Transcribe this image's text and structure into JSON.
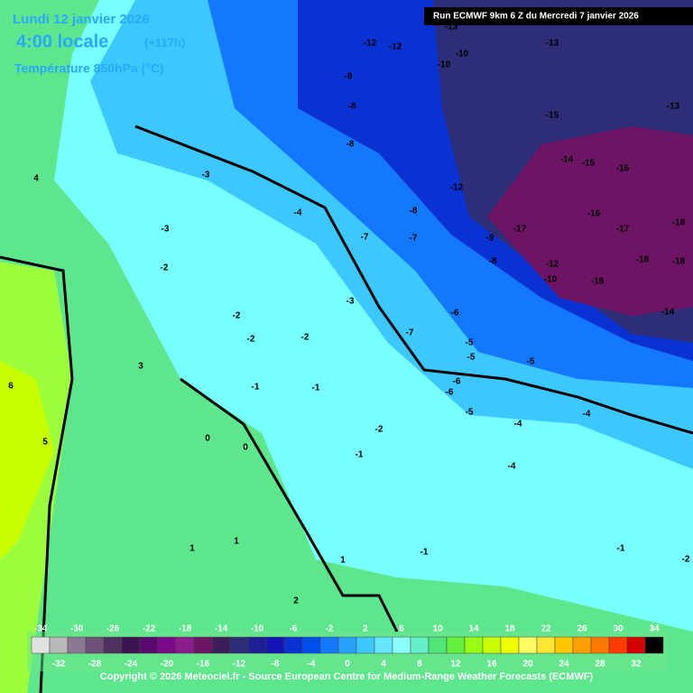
{
  "header": {
    "date": "Lundi 12 janvier 2026",
    "time": "4:00 locale",
    "lead": "(+117h)",
    "field": "Température 850hPa (°C)"
  },
  "run": "Run ECMWF 9km 6 Z du Mercredi 7 janvier 2026",
  "copyright": "Copyright © 2026 Meteociel.fr - Source European Centre for Medium-Range Weather Forecasts (ECMWF)",
  "scale": {
    "colors": [
      "#e1e1e1",
      "#b9b9b9",
      "#8c7891",
      "#6e5078",
      "#50305f",
      "#3c1450",
      "#5a0a6e",
      "#7d0a8c",
      "#8c1e8c",
      "#6e1464",
      "#3c1e5a",
      "#2d2d78",
      "#1e1e96",
      "#1414b4",
      "#0a32d2",
      "#0050f0",
      "#1478ff",
      "#28a0ff",
      "#3cc8ff",
      "#64e6ff",
      "#8cffff",
      "#64f0c8",
      "#50e678",
      "#64f03c",
      "#96ff14",
      "#c8ff00",
      "#f0ff00",
      "#ffff64",
      "#ffe632",
      "#ffc800",
      "#ffa000",
      "#ff7800",
      "#ff3c00",
      "#d20000",
      "#000000"
    ],
    "top_labels": [
      -34,
      -30,
      -26,
      -22,
      -18,
      -14,
      -10,
      -6,
      -2,
      2,
      6,
      10,
      14,
      18,
      22,
      26,
      30,
      34
    ],
    "bottom_labels": [
      -32,
      -28,
      -24,
      -20,
      -16,
      -12,
      -8,
      -4,
      0,
      4,
      8,
      12,
      16,
      20,
      24,
      28,
      32
    ]
  },
  "map_labels": [
    -12,
    -12,
    -13,
    -10,
    -10,
    -13,
    -15,
    -13,
    -14,
    -15,
    -16,
    -12,
    -16,
    -17,
    -18,
    -17,
    -18,
    -18,
    -18,
    -14,
    -12,
    -10,
    -9,
    -8,
    -8,
    -8,
    -7,
    -7,
    -7,
    -6,
    -6,
    -5,
    -5,
    -5,
    -4,
    -4,
    -4,
    -3,
    -3,
    -3,
    -2,
    -2,
    -2,
    -2,
    -1,
    -1,
    -1,
    0,
    0,
    1,
    1,
    1,
    2,
    3,
    4,
    5,
    6,
    -9,
    -8,
    -6,
    -5,
    -4,
    -2,
    -1,
    -1,
    -2
  ]
}
